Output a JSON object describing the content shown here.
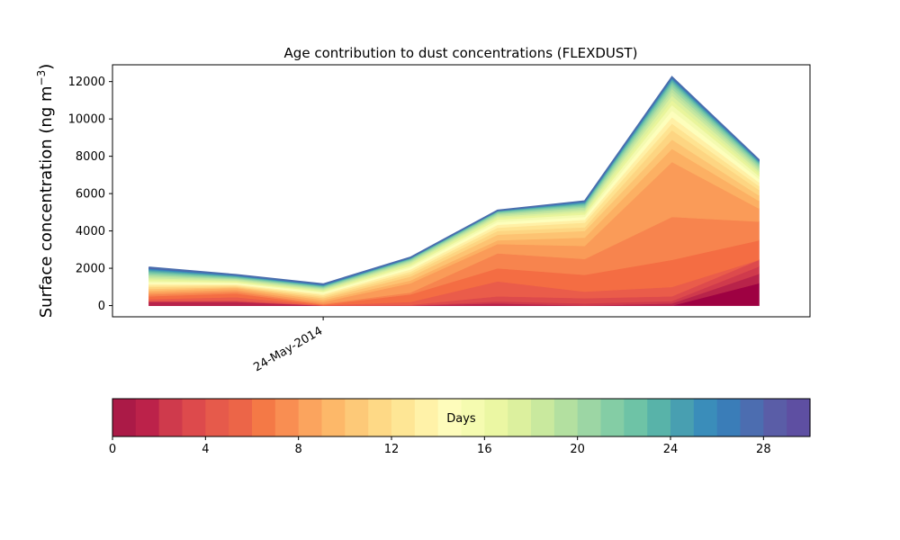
{
  "chart_data": {
    "type": "area",
    "stacked": true,
    "title": "Age contribution to dust concentrations (FLEXDUST)",
    "ylabel": "Surface concentration (ng m",
    "ylabel_sup": "−3",
    "ylabel_close": ")",
    "ylim": [
      -600,
      12900
    ],
    "yticks": [
      0,
      2000,
      4000,
      6000,
      8000,
      10000,
      12000
    ],
    "yticklabels": [
      "0",
      "2000",
      "4000",
      "6000",
      "8000",
      "10000",
      "12000"
    ],
    "x": [
      "2014-05-23",
      "2014-05-23T12",
      "2014-05-24",
      "2014-05-24T12",
      "2014-05-25",
      "2014-05-25T12",
      "2014-05-26",
      "2014-05-26T12"
    ],
    "xlim": [
      "2014-05-22T19",
      "2014-05-26T19"
    ],
    "xticks": [
      "2014-05-24"
    ],
    "xticklabels": [
      "24-May-2014"
    ],
    "totals": [
      2050,
      1650,
      1150,
      2580,
      5100,
      5600,
      12250,
      7800
    ],
    "boundaries": [
      [
        0,
        0,
        0,
        0,
        0,
        0,
        0,
        0
      ],
      [
        0,
        0,
        0,
        0,
        0,
        0,
        0,
        1200
      ],
      [
        200,
        200,
        0,
        0,
        120,
        0,
        120,
        1700
      ],
      [
        220,
        220,
        0,
        0,
        230,
        120,
        250,
        2100
      ],
      [
        250,
        280,
        0,
        40,
        500,
        400,
        500,
        2450
      ],
      [
        350,
        450,
        20,
        200,
        1300,
        750,
        1000,
        2450
      ],
      [
        500,
        650,
        50,
        600,
        2000,
        1650,
        2450,
        3500
      ],
      [
        600,
        750,
        100,
        700,
        2800,
        2500,
        4750,
        4500
      ],
      [
        700,
        850,
        200,
        1200,
        3300,
        3200,
        7700,
        5200
      ],
      [
        800,
        950,
        300,
        1350,
        3500,
        3650,
        8400,
        5600
      ],
      [
        900,
        1000,
        400,
        1550,
        3800,
        4000,
        8900,
        5900
      ],
      [
        1000,
        1050,
        480,
        1700,
        4000,
        4200,
        9400,
        6200
      ],
      [
        1080,
        1100,
        560,
        1820,
        4180,
        4450,
        9750,
        6400
      ],
      [
        1160,
        1150,
        630,
        1940,
        4330,
        4600,
        10100,
        6600
      ],
      [
        1240,
        1200,
        690,
        2050,
        4480,
        4750,
        10450,
        6780
      ],
      [
        1320,
        1250,
        750,
        2140,
        4600,
        4880,
        10750,
        6940
      ],
      [
        1400,
        1300,
        800,
        2220,
        4700,
        4990,
        11000,
        7080
      ],
      [
        1480,
        1350,
        850,
        2290,
        4780,
        5090,
        11250,
        7200
      ],
      [
        1560,
        1400,
        900,
        2350,
        4850,
        5180,
        11450,
        7310
      ],
      [
        1630,
        1440,
        940,
        2400,
        4910,
        5260,
        11620,
        7410
      ],
      [
        1700,
        1480,
        980,
        2440,
        4960,
        5330,
        11770,
        7500
      ],
      [
        1760,
        1510,
        1010,
        2475,
        5000,
        5390,
        11890,
        7570
      ],
      [
        1820,
        1540,
        1040,
        2505,
        5030,
        5440,
        11990,
        7630
      ],
      [
        1870,
        1570,
        1065,
        2525,
        5055,
        5480,
        12070,
        7680
      ],
      [
        1910,
        1590,
        1085,
        2540,
        5070,
        5520,
        12130,
        7720
      ],
      [
        1950,
        1610,
        1100,
        2552,
        5080,
        5550,
        12170,
        7750
      ],
      [
        1980,
        1625,
        1115,
        2562,
        5088,
        5570,
        12200,
        7770
      ],
      [
        2005,
        1635,
        1128,
        2570,
        5094,
        5585,
        12220,
        7783
      ],
      [
        2025,
        1643,
        1138,
        2575,
        5097,
        5593,
        12235,
        7792
      ],
      [
        2040,
        1648,
        1145,
        2578,
        5099,
        5598,
        12245,
        7797
      ],
      [
        2050,
        1650,
        1150,
        2580,
        5100,
        5600,
        12250,
        7800
      ]
    ],
    "layer_colors": [
      "#9e0142",
      "#b8234a",
      "#cf3a4c",
      "#dd4a4c",
      "#ea5c4a",
      "#f46d43",
      "#f7844e",
      "#fa9b58",
      "#fcb063",
      "#fdc372",
      "#fdd582",
      "#fee391",
      "#fff0a6",
      "#fdfebc",
      "#f4fab0",
      "#e9f59c",
      "#dcf09e",
      "#c7e8a0",
      "#b6e1a0",
      "#9dd7a4",
      "#86cfa5",
      "#70c4a8",
      "#5bb1a9",
      "#4aa2ae",
      "#3d8ebb",
      "#3580b9",
      "#4271b3",
      "#5b5fa9",
      "#5e4fa2",
      "#5a5aa8"
    ],
    "outline_color": "#4a6dad",
    "colorbar": {
      "label": "Days",
      "range": [
        0,
        30
      ],
      "ticks": [
        0,
        4,
        8,
        12,
        16,
        20,
        24,
        28
      ],
      "ticklabels": [
        "0",
        "4",
        "8",
        "12",
        "16",
        "20",
        "24",
        "28"
      ],
      "colors": [
        "#ab1a47",
        "#bc224a",
        "#cf3a4c",
        "#dd4a4c",
        "#e65a4b",
        "#ec6548",
        "#f47946",
        "#f98e52",
        "#fba45e",
        "#fdb869",
        "#fdc978",
        "#fed986",
        "#fee695",
        "#fff2a8",
        "#fefcbb",
        "#f5fbb0",
        "#ebf7a3",
        "#dcf09e",
        "#c9e99e",
        "#b3e0a0",
        "#9cd6a4",
        "#84cda5",
        "#6ec3a6",
        "#58b3a9",
        "#489fb1",
        "#3a8dba",
        "#3a7db8",
        "#4c6db0",
        "#5a5da7",
        "#5e4fa2"
      ]
    }
  }
}
